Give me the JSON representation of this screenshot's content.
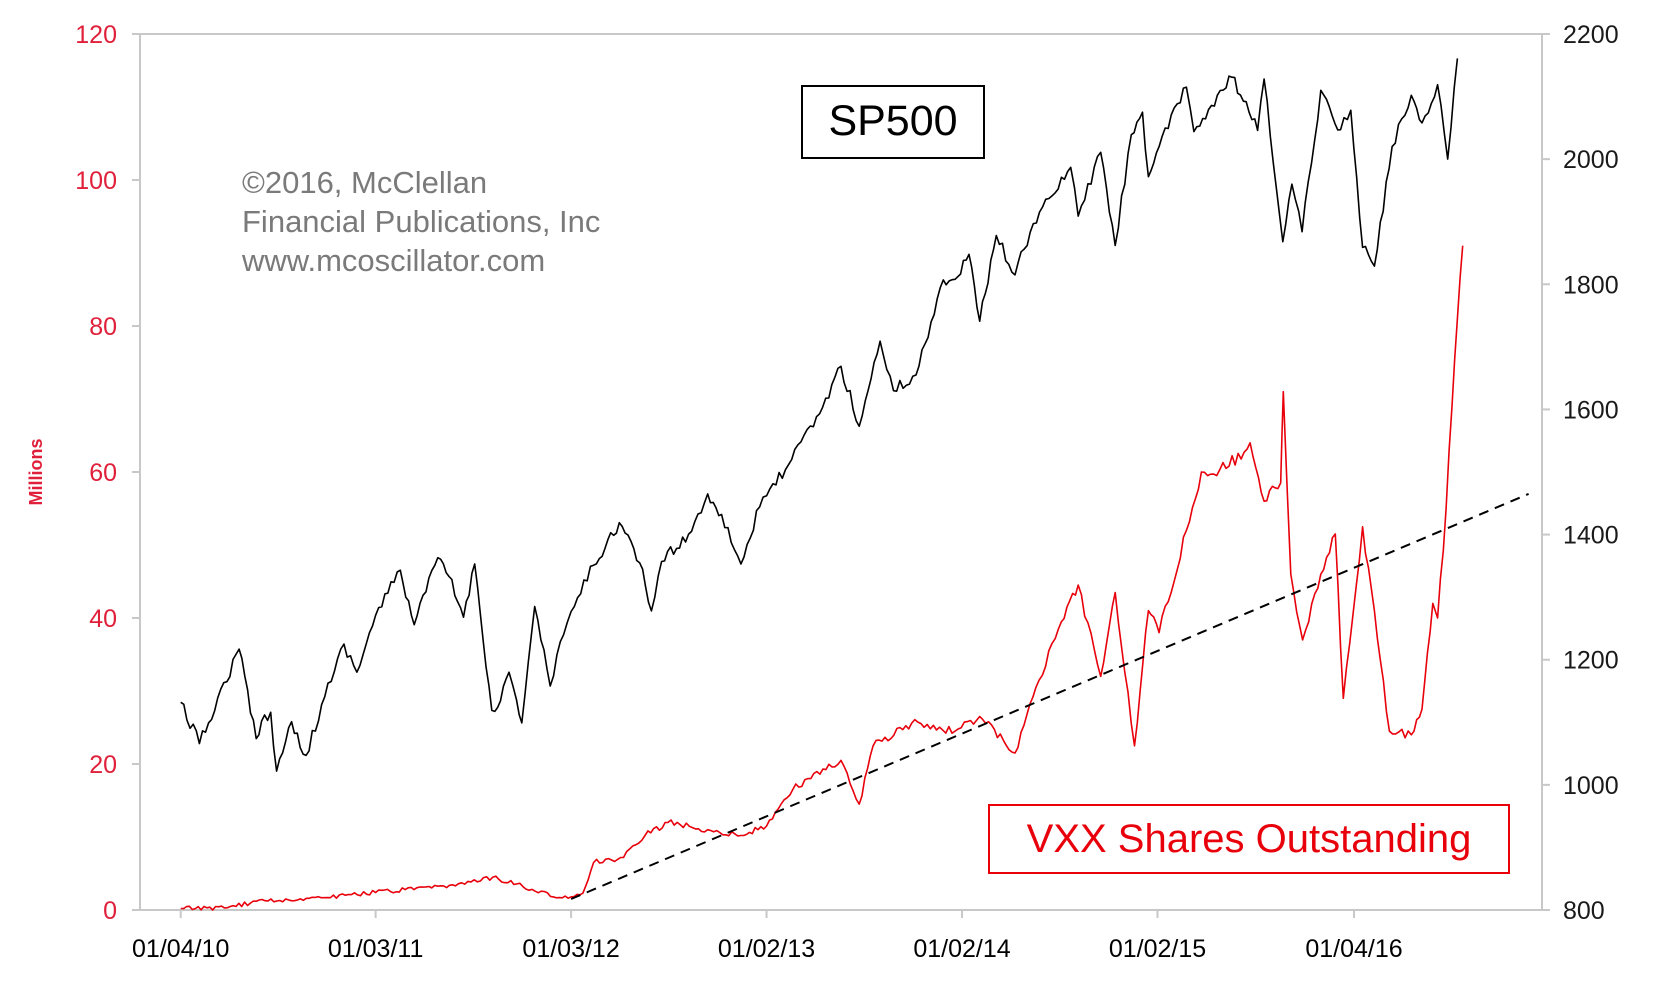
{
  "colors": {
    "left_axis": "#e0203a",
    "right_axis": "#1a1a1a",
    "sp500_line": "#000000",
    "vxx_line": "#e8000b",
    "trend_line": "#000000",
    "border": "#c8c8c8",
    "watermark": "#7a7a7a"
  },
  "chart_data": {
    "type": "line",
    "title": "",
    "labels": {
      "sp500": "SP500",
      "vxx": "VXX Shares Outstanding"
    },
    "watermark": [
      "©2016, McClellan",
      "Financial Publications, Inc",
      "www.mcoscillator.com"
    ],
    "ylabel_left": "Millions",
    "ylabel_right": "",
    "ylim_left": [
      0,
      120
    ],
    "ylim_right": [
      800,
      2200
    ],
    "yticks_left": [
      0,
      20,
      40,
      60,
      80,
      100,
      120
    ],
    "yticks_right": [
      800,
      1000,
      1200,
      1400,
      1600,
      1800,
      2000,
      2200
    ],
    "xlim": [
      "2009-10-20",
      "2016-12-20"
    ],
    "xticks": [
      {
        "date": "2010-01-04",
        "label": "01/04/10"
      },
      {
        "date": "2011-01-03",
        "label": "01/03/11"
      },
      {
        "date": "2012-01-03",
        "label": "01/03/12"
      },
      {
        "date": "2013-01-02",
        "label": "01/02/13"
      },
      {
        "date": "2014-01-02",
        "label": "01/02/14"
      },
      {
        "date": "2015-01-02",
        "label": "01/02/15"
      },
      {
        "date": "2016-01-04",
        "label": "01/04/16"
      }
    ],
    "grid": false,
    "series": [
      {
        "key": "sp500",
        "axis": "right",
        "x": [
          "2010-01-04",
          "2010-02-08",
          "2010-04-23",
          "2010-05-25",
          "2010-06-04",
          "2010-06-21",
          "2010-07-02",
          "2010-07-30",
          "2010-08-26",
          "2010-09-30",
          "2010-11-05",
          "2010-11-29",
          "2011-01-03",
          "2011-02-18",
          "2011-03-16",
          "2011-04-29",
          "2011-05-20",
          "2011-06-16",
          "2011-07-07",
          "2011-08-08",
          "2011-08-19",
          "2011-09-09",
          "2011-09-23",
          "2011-10-03",
          "2011-10-27",
          "2011-11-25",
          "2011-12-20",
          "2012-01-03",
          "2012-02-14",
          "2012-04-02",
          "2012-05-10",
          "2012-06-01",
          "2012-06-20",
          "2012-08-15",
          "2012-09-14",
          "2012-10-10",
          "2012-11-15",
          "2012-12-20",
          "2013-01-02",
          "2013-02-18",
          "2013-04-11",
          "2013-05-21",
          "2013-06-24",
          "2013-08-02",
          "2013-08-27",
          "2013-10-08",
          "2013-11-28",
          "2013-12-20",
          "2014-01-15",
          "2014-02-04",
          "2014-03-07",
          "2014-04-11",
          "2014-05-15",
          "2014-07-24",
          "2014-08-07",
          "2014-09-18",
          "2014-10-15",
          "2014-11-14",
          "2014-12-05",
          "2014-12-16",
          "2015-01-05",
          "2015-02-25",
          "2015-03-11",
          "2015-05-21",
          "2015-07-08",
          "2015-07-20",
          "2015-08-24",
          "2015-09-10",
          "2015-09-29",
          "2015-11-03",
          "2015-12-10",
          "2015-12-29",
          "2016-01-20",
          "2016-02-11",
          "2016-03-15",
          "2016-04-20",
          "2016-05-10",
          "2016-06-08",
          "2016-06-27",
          "2016-07-15"
        ],
        "values": [
          1132,
          1066,
          1217,
          1074,
          1102,
          1116,
          1022,
          1101,
          1047,
          1141,
          1225,
          1180,
          1271,
          1343,
          1256,
          1363,
          1333,
          1268,
          1353,
          1119,
          1124,
          1180,
          1136,
          1099,
          1285,
          1158,
          1240,
          1277,
          1351,
          1419,
          1355,
          1278,
          1357,
          1405,
          1465,
          1432,
          1353,
          1444,
          1462,
          1520,
          1593,
          1669,
          1573,
          1709,
          1630,
          1655,
          1807,
          1808,
          1848,
          1741,
          1878,
          1815,
          1897,
          1987,
          1909,
          2011,
          1862,
          2039,
          2075,
          1972,
          2020,
          2115,
          2044,
          2131,
          2046,
          2128,
          1868,
          1960,
          1884,
          2110,
          2047,
          2078,
          1859,
          1829,
          2020,
          2102,
          2058,
          2119,
          2000,
          2161
        ]
      },
      {
        "key": "vxx",
        "axis": "left",
        "x": [
          "2010-01-04",
          "2010-04-01",
          "2010-05-25",
          "2010-09-01",
          "2011-01-03",
          "2011-06-01",
          "2011-08-10",
          "2011-10-05",
          "2011-12-01",
          "2012-01-03",
          "2012-01-25",
          "2012-02-14",
          "2012-04-10",
          "2012-05-20",
          "2012-07-02",
          "2012-09-14",
          "2012-11-15",
          "2013-01-02",
          "2013-02-20",
          "2013-03-20",
          "2013-05-21",
          "2013-06-24",
          "2013-07-20",
          "2013-09-30",
          "2013-12-20",
          "2014-02-04",
          "2014-04-11",
          "2014-05-20",
          "2014-07-01",
          "2014-08-07",
          "2014-09-18",
          "2014-10-15",
          "2014-11-20",
          "2014-12-16",
          "2015-01-05",
          "2015-02-25",
          "2015-03-25",
          "2015-05-10",
          "2015-06-24",
          "2015-07-20",
          "2015-08-20",
          "2015-08-25",
          "2015-09-08",
          "2015-09-30",
          "2015-11-03",
          "2015-11-30",
          "2015-12-15",
          "2016-01-20",
          "2016-02-11",
          "2016-03-10",
          "2016-04-20",
          "2016-05-10",
          "2016-05-30",
          "2016-06-08",
          "2016-06-24",
          "2016-07-05",
          "2016-07-15",
          "2016-07-25"
        ],
        "values": [
          0.2,
          0.3,
          1.2,
          1.6,
          2.4,
          3.3,
          4.5,
          3.2,
          1.8,
          1.8,
          2.3,
          6.5,
          7.2,
          10.2,
          12.0,
          11.0,
          10.2,
          11.5,
          16.5,
          18.0,
          20.5,
          14.5,
          22.5,
          25.6,
          24.5,
          26.5,
          21.5,
          30.5,
          38.5,
          44.5,
          32.0,
          43.5,
          22.5,
          41.0,
          38.0,
          52.0,
          60.0,
          60.5,
          64.0,
          56.0,
          58.5,
          71.0,
          46.0,
          37.0,
          46.0,
          51.5,
          29.0,
          52.5,
          41.0,
          24.5,
          24.0,
          27.5,
          42.0,
          40.0,
          55.0,
          69.0,
          81.0,
          91.0
        ]
      },
      {
        "key": "trend",
        "axis": "left",
        "style": "dashed",
        "x": [
          "2012-01-03",
          "2016-11-25"
        ],
        "values": [
          1.5,
          57.0
        ]
      }
    ]
  }
}
